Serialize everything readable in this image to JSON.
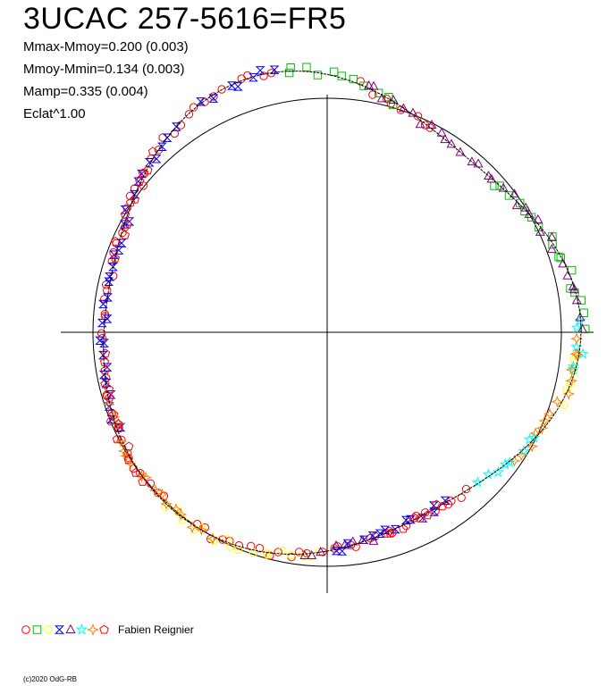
{
  "chart_data": {
    "type": "scatter",
    "projection": "polar phase diagram",
    "title": "3UCAC 257-5616=FR5",
    "stats": [
      "Mmax-Mmoy=0.200 (0.003)",
      "Mmoy-Mmin=0.134 (0.003)",
      "Mamp=0.335 (0.004)",
      "Eclat^1.00"
    ],
    "reference_circle": true,
    "crosshair_axes": true,
    "fit_curve": {
      "mean_radius": 1.0,
      "amplitude_harmonics": [
        0.058,
        0.0,
        0.07,
        0.02
      ],
      "phase_offsets": [
        0.0,
        0.0,
        1.2,
        0.4
      ]
    },
    "series": [
      {
        "marker": "circle",
        "color": "#ff0000",
        "phase_ranges": [
          [
            0.38,
            0.6
          ],
          [
            0.62,
            0.72
          ],
          [
            0.74,
            0.97
          ],
          [
            0.02,
            0.08
          ]
        ]
      },
      {
        "marker": "square",
        "color": "#00c000",
        "phase_ranges": [
          [
            0.97,
            1.0
          ],
          [
            0.0,
            0.05
          ],
          [
            0.13,
            0.25
          ]
        ]
      },
      {
        "marker": "circle",
        "color": "#ffff00",
        "phase_ranges": [
          [
            0.5,
            0.62
          ],
          [
            0.26,
            0.3
          ]
        ]
      },
      {
        "marker": "hourglass",
        "color": "#0000ff",
        "phase_ranges": [
          [
            0.68,
            0.9
          ],
          [
            0.92,
            0.97
          ],
          [
            0.4,
            0.5
          ]
        ]
      },
      {
        "marker": "star",
        "color": "#00ffff",
        "phase_ranges": [
          [
            0.32,
            0.38
          ],
          [
            0.24,
            0.28
          ]
        ]
      },
      {
        "marker": "triangle",
        "color": "#800080",
        "phase_ranges": [
          [
            0.02,
            0.25
          ],
          [
            0.46,
            0.52
          ]
        ]
      },
      {
        "marker": "star4",
        "color": "#ff8000",
        "phase_ranges": [
          [
            0.25,
            0.35
          ],
          [
            0.58,
            0.7
          ]
        ]
      },
      {
        "marker": "pentagon",
        "color": "#ff0000",
        "phase_ranges": [
          [
            0.64,
            0.74
          ],
          [
            0.4,
            0.46
          ],
          [
            0.8,
            0.88
          ]
        ]
      }
    ],
    "legend": {
      "label": "Fabien Reignier",
      "position": "bottom-left",
      "markers": [
        {
          "marker": "circle",
          "color": "#ff0000"
        },
        {
          "marker": "square",
          "color": "#00c000"
        },
        {
          "marker": "circle",
          "color": "#ffff00"
        },
        {
          "marker": "hourglass",
          "color": "#0000ff"
        },
        {
          "marker": "triangle",
          "color": "#800080"
        },
        {
          "marker": "star",
          "color": "#00ffff"
        },
        {
          "marker": "star4",
          "color": "#ff8000"
        },
        {
          "marker": "pentagon",
          "color": "#ff0000"
        }
      ]
    }
  },
  "copyright": "(c)2020 OdG-RB"
}
